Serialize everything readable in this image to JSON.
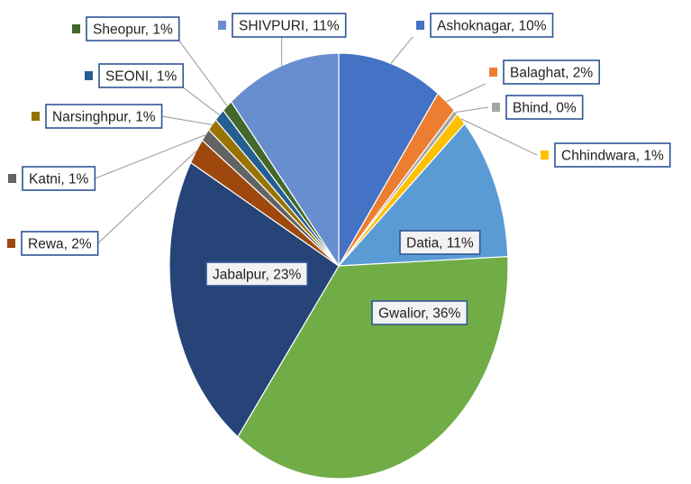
{
  "chart_data": {
    "type": "pie",
    "title": "",
    "start_angle_deg": 0,
    "direction": "clockwise",
    "legend": "none",
    "data_labels": "category, percentage (callouts)",
    "slices": [
      {
        "name": "Ashoknagar",
        "value": 10,
        "label": "Ashoknagar, 10%",
        "color": "#4472c4"
      },
      {
        "name": "Balaghat",
        "value": 2,
        "label": "Balaghat, 2%",
        "color": "#ed7d31"
      },
      {
        "name": "Bhind",
        "value": 0,
        "label": "Bhind, 0%",
        "color": "#a5a5a5"
      },
      {
        "name": "Chhindwara",
        "value": 1,
        "label": "Chhindwara, 1%",
        "color": "#ffc000"
      },
      {
        "name": "Datia",
        "value": 11,
        "label": "Datia, 11%",
        "color": "#5b9bd5"
      },
      {
        "name": "Gwalior",
        "value": 36,
        "label": "Gwalior, 36%",
        "color": "#70ad47"
      },
      {
        "name": "Jabalpur",
        "value": 23,
        "label": "Jabalpur, 23%",
        "color": "#264478"
      },
      {
        "name": "Rewa",
        "value": 2,
        "label": "Rewa, 2%",
        "color": "#9e480e"
      },
      {
        "name": "Katni",
        "value": 1,
        "label": "Katni, 1%",
        "color": "#636363"
      },
      {
        "name": "Narsinghpur",
        "value": 1,
        "label": "Narsinghpur, 1%",
        "color": "#997300"
      },
      {
        "name": "SEONI",
        "value": 1,
        "label": "SEONI, 1%",
        "color": "#255e91"
      },
      {
        "name": "Sheopur",
        "value": 1,
        "label": "Sheopur, 1%",
        "color": "#43682b"
      },
      {
        "name": "SHIVPURI",
        "value": 11,
        "label": "SHIVPURI, 11%",
        "color": "#698ed0"
      }
    ]
  }
}
